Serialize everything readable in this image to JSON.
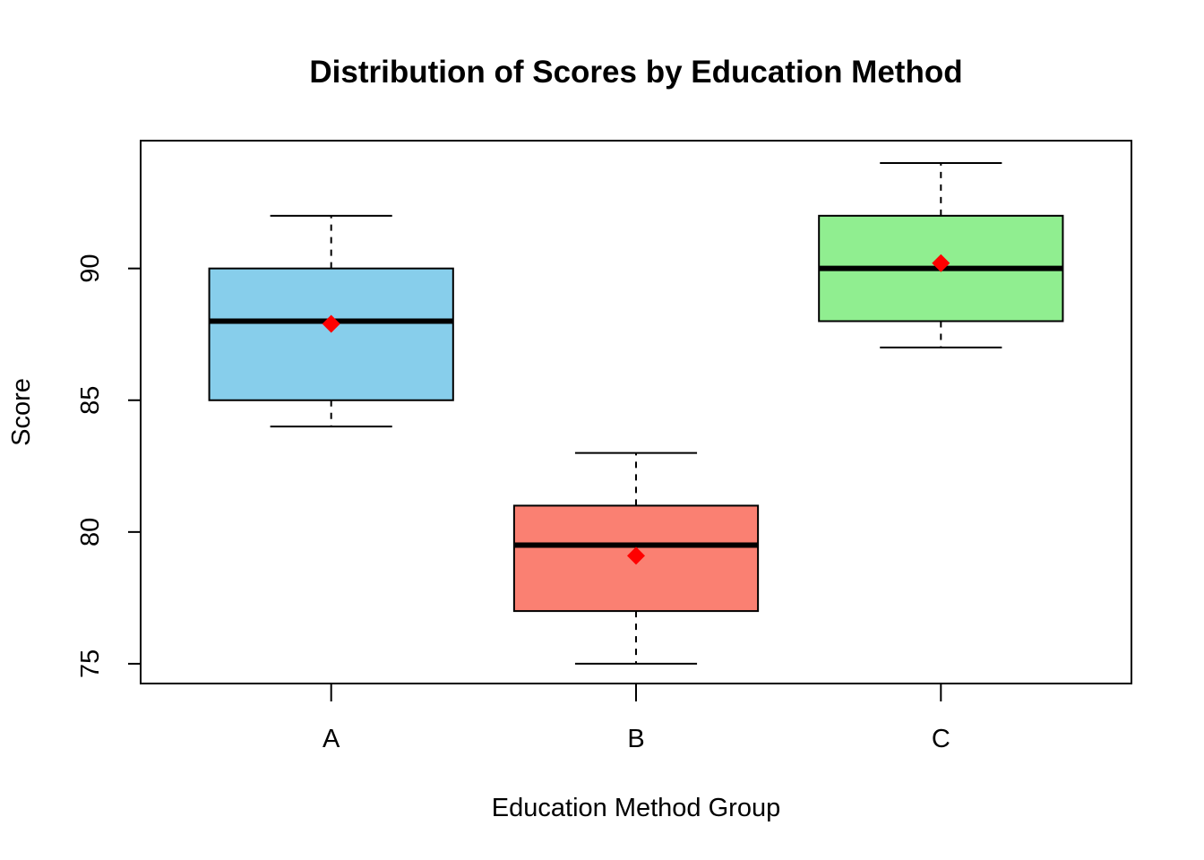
{
  "chart_data": {
    "type": "boxplot",
    "title": "Distribution of Scores by Education Method",
    "xlabel": "Education Method Group",
    "ylabel": "Score",
    "ylim": [
      74.25,
      94.85
    ],
    "y_ticks": [
      75,
      80,
      85,
      90
    ],
    "categories": [
      "A",
      "B",
      "C"
    ],
    "boxes": [
      {
        "category": "A",
        "min": 84,
        "q1": 85,
        "median": 88,
        "q3": 90,
        "max": 92,
        "mean": 87.9,
        "color": "#87ceeb"
      },
      {
        "category": "B",
        "min": 75,
        "q1": 77,
        "median": 79.5,
        "q3": 81,
        "max": 83,
        "mean": 79.1,
        "color": "#fa8072"
      },
      {
        "category": "C",
        "min": 87,
        "q1": 88,
        "median": 90,
        "q3": 92,
        "max": 94,
        "mean": 90.2,
        "color": "#90ee90"
      }
    ],
    "mean_marker_color": "#ff0000",
    "grid": false,
    "legend": "none"
  }
}
